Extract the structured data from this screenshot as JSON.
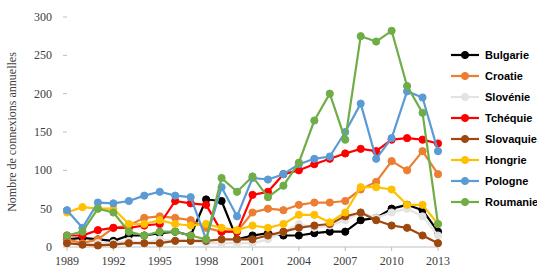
{
  "chart_data": {
    "type": "line",
    "y_label": "Nombre de connexions annuelles",
    "x": [
      1989,
      1990,
      1991,
      1992,
      1993,
      1994,
      1995,
      1996,
      1997,
      1998,
      1999,
      2000,
      2001,
      2002,
      2003,
      2004,
      2005,
      2006,
      2007,
      2008,
      2009,
      2010,
      2011,
      2012,
      2013
    ],
    "xlim": [
      1989,
      2013
    ],
    "xticks": [
      1989,
      1992,
      1995,
      1998,
      2001,
      2004,
      2007,
      2010,
      2013
    ],
    "ylim": [
      0,
      300
    ],
    "yticks": [
      0,
      50,
      100,
      150,
      200,
      250,
      300
    ],
    "grid": false,
    "legend": "right",
    "marker": "circle",
    "series": [
      {
        "name": "Bulgarie",
        "color": "#000000",
        "values": [
          10,
          12,
          10,
          8,
          15,
          15,
          18,
          20,
          15,
          62,
          60,
          10,
          15,
          18,
          15,
          15,
          18,
          20,
          20,
          35,
          38,
          50,
          55,
          48,
          20
        ]
      },
      {
        "name": "Croatie",
        "color": "#ed7d31",
        "values": [
          10,
          5,
          10,
          25,
          28,
          38,
          40,
          38,
          35,
          25,
          20,
          20,
          45,
          50,
          48,
          55,
          58,
          58,
          60,
          75,
          85,
          112,
          100,
          125,
          95
        ]
      },
      {
        "name": "Slovénie",
        "color": "#e3e3e3",
        "values": [
          5,
          3,
          5,
          5,
          8,
          5,
          10,
          8,
          8,
          5,
          5,
          5,
          5,
          10,
          20,
          30,
          25,
          28,
          35,
          45,
          38,
          45,
          50,
          40,
          15
        ]
      },
      {
        "name": "Tchéquie",
        "color": "#ff0000",
        "values": [
          15,
          15,
          22,
          25,
          25,
          28,
          30,
          60,
          57,
          55,
          20,
          20,
          68,
          72,
          95,
          100,
          108,
          115,
          122,
          128,
          125,
          140,
          142,
          140,
          135
        ]
      },
      {
        "name": "Slovaquie",
        "color": "#9e480e",
        "values": [
          5,
          3,
          2,
          3,
          5,
          5,
          5,
          8,
          8,
          8,
          10,
          10,
          10,
          15,
          20,
          25,
          28,
          30,
          40,
          45,
          35,
          28,
          25,
          15,
          5
        ]
      },
      {
        "name": "Hongrie",
        "color": "#ffc000",
        "values": [
          45,
          52,
          50,
          50,
          30,
          30,
          35,
          30,
          28,
          30,
          25,
          22,
          28,
          25,
          30,
          42,
          42,
          32,
          45,
          78,
          78,
          75,
          55,
          55,
          30
        ]
      },
      {
        "name": "Pologne",
        "color": "#5b9bd5",
        "values": [
          48,
          25,
          58,
          57,
          60,
          67,
          72,
          67,
          65,
          10,
          78,
          40,
          90,
          88,
          95,
          108,
          115,
          118,
          150,
          187,
          115,
          142,
          203,
          195,
          125
        ]
      },
      {
        "name": "Roumanie",
        "color": "#70ad47",
        "values": [
          15,
          20,
          50,
          45,
          20,
          15,
          20,
          20,
          15,
          10,
          90,
          72,
          92,
          65,
          80,
          110,
          165,
          200,
          140,
          275,
          268,
          282,
          210,
          175,
          30
        ]
      }
    ]
  }
}
